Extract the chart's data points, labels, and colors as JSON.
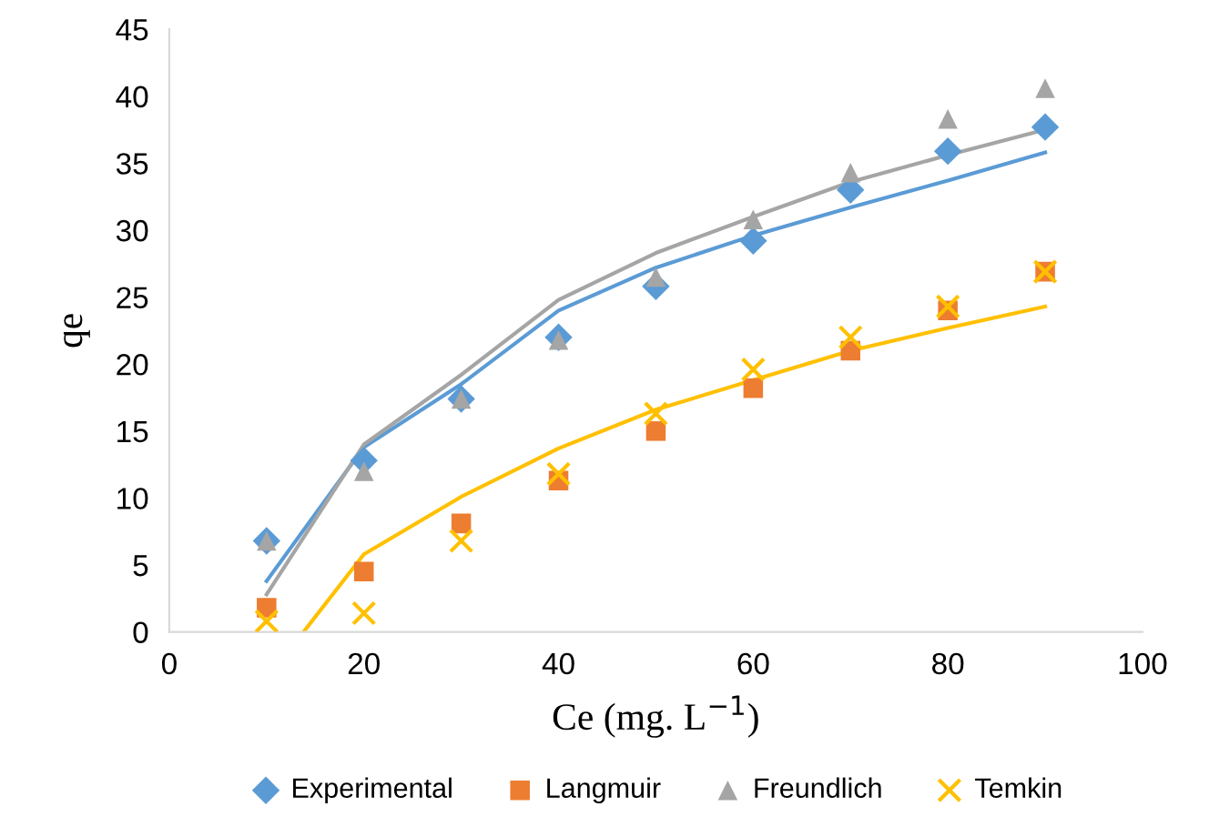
{
  "chart_data": {
    "type": "scatter",
    "xlabel": "Ce (mg. L$^{−1}$)",
    "ylabel": "qe",
    "x": [
      10,
      20,
      30,
      40,
      50,
      60,
      70,
      80,
      90
    ],
    "xlim": [
      0,
      100
    ],
    "xticks": [
      0,
      20,
      40,
      60,
      80,
      100
    ],
    "ylim": [
      0,
      45
    ],
    "yticks": [
      0,
      5,
      10,
      15,
      20,
      25,
      30,
      35,
      40,
      45
    ],
    "grid": false,
    "legend": "bottom",
    "series": [
      {
        "name": "Experimental",
        "color": "#5b9bd5",
        "marker": "diamond",
        "values": [
          6.8,
          12.8,
          17.4,
          22.0,
          25.8,
          29.2,
          33.0,
          35.9,
          37.7
        ]
      },
      {
        "name": "Langmuir",
        "color": "#ed7d31",
        "marker": "square",
        "values": [
          1.8,
          4.5,
          8.1,
          11.3,
          15.0,
          18.2,
          21.0,
          24.0,
          26.9
        ]
      },
      {
        "name": "Freundlich",
        "color": "#a5a5a5",
        "marker": "triangle",
        "values": [
          6.8,
          12.0,
          17.4,
          21.8,
          26.5,
          30.8,
          34.3,
          38.3,
          40.6
        ]
      },
      {
        "name": "Temkin",
        "color": "#ffc000",
        "marker": "cross",
        "values": [
          0.8,
          1.4,
          6.8,
          11.8,
          16.3,
          19.6,
          22.0,
          24.3,
          26.9
        ]
      },
      {
        "type": "line",
        "color": "#5b9bd5",
        "line_style": "solid",
        "x": [
          10,
          20,
          30,
          40,
          50,
          60,
          70,
          80,
          90
        ],
        "values": [
          3.8,
          13.8,
          18.5,
          24.0,
          27.2,
          29.6,
          31.7,
          33.7,
          35.8
        ]
      },
      {
        "type": "line",
        "color": "#a5a5a5",
        "line_style": "solid",
        "x": [
          10,
          20,
          30,
          40,
          50,
          60,
          70,
          80,
          90
        ],
        "values": [
          2.8,
          14.0,
          19.2,
          24.8,
          28.3,
          31.0,
          33.6,
          35.6,
          37.5
        ]
      },
      {
        "type": "line",
        "color": "#ffc000",
        "line_style": "solid",
        "x": [
          13.8,
          20,
          30,
          40,
          50,
          60,
          70,
          80,
          90
        ],
        "values": [
          0,
          5.8,
          10.1,
          13.7,
          16.6,
          18.8,
          21.0,
          22.7,
          24.3
        ]
      }
    ]
  }
}
